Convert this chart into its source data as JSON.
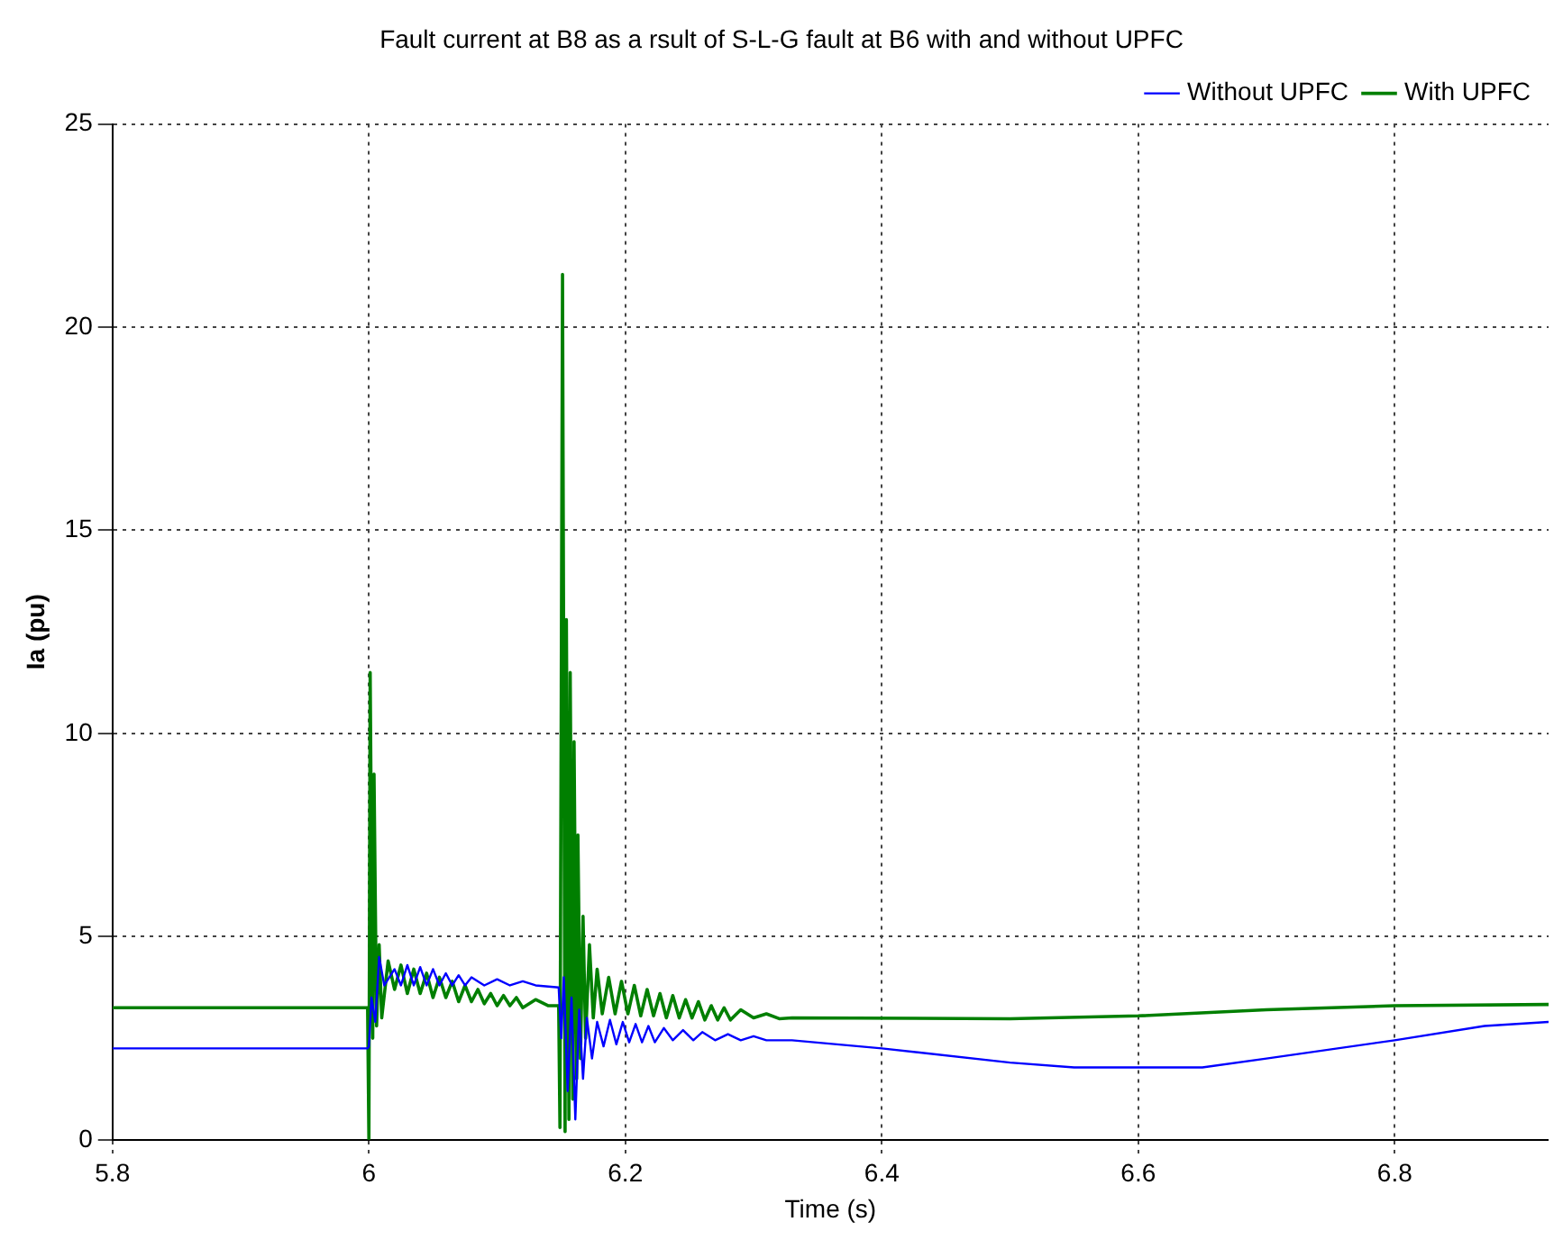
{
  "chart_data": {
    "type": "line",
    "title": "Fault current at B8 as a rsult of S-L-G fault at B6 with and without UPFC",
    "xlabel": "Time (s)",
    "ylabel": "Ia (pu)",
    "xlim": [
      5.8,
      6.92
    ],
    "xticks": [
      5.8,
      6,
      6.2,
      6.4,
      6.6,
      6.8
    ],
    "ylim": [
      0,
      25
    ],
    "yticks": [
      0,
      5,
      10,
      15,
      20,
      25
    ],
    "grid": true,
    "legend": "top right",
    "marker": "none",
    "line_style": "solid",
    "series": [
      {
        "name": "Without UPFC",
        "color": "#0000ff",
        "x": [
          5.8,
          5.999,
          6.0,
          6.002,
          6.005,
          6.008,
          6.012,
          6.02,
          6.025,
          6.03,
          6.035,
          6.04,
          6.045,
          6.05,
          6.055,
          6.06,
          6.065,
          6.07,
          6.075,
          6.08,
          6.09,
          6.1,
          6.11,
          6.12,
          6.13,
          6.148,
          6.15,
          6.152,
          6.155,
          6.158,
          6.161,
          6.164,
          6.167,
          6.17,
          6.174,
          6.178,
          6.183,
          6.188,
          6.193,
          6.198,
          6.203,
          6.208,
          6.213,
          6.218,
          6.223,
          6.23,
          6.237,
          6.245,
          6.253,
          6.26,
          6.27,
          6.28,
          6.29,
          6.3,
          6.31,
          6.33,
          6.4,
          6.5,
          6.55,
          6.65,
          6.7,
          6.8,
          6.87,
          6.92
        ],
        "values": [
          2.25,
          2.25,
          2.3,
          3.5,
          2.9,
          4.5,
          3.8,
          4.2,
          3.8,
          4.3,
          3.8,
          4.25,
          3.8,
          4.2,
          3.8,
          4.1,
          3.8,
          4.05,
          3.8,
          4.0,
          3.8,
          3.95,
          3.8,
          3.9,
          3.8,
          3.75,
          2.5,
          4.0,
          1.2,
          3.5,
          0.5,
          3.2,
          1.5,
          3.0,
          2.0,
          2.9,
          2.3,
          2.95,
          2.35,
          2.9,
          2.4,
          2.85,
          2.4,
          2.8,
          2.4,
          2.75,
          2.45,
          2.7,
          2.45,
          2.65,
          2.45,
          2.6,
          2.45,
          2.55,
          2.45,
          2.45,
          2.25,
          1.9,
          1.78,
          1.78,
          2.0,
          2.45,
          2.8,
          2.9
        ]
      },
      {
        "name": "With UPFC",
        "color": "#007f00",
        "x": [
          5.8,
          5.999,
          6.0,
          6.001,
          6.003,
          6.004,
          6.006,
          6.008,
          6.01,
          6.015,
          6.02,
          6.025,
          6.03,
          6.035,
          6.04,
          6.045,
          6.05,
          6.055,
          6.06,
          6.065,
          6.07,
          6.075,
          6.08,
          6.085,
          6.09,
          6.095,
          6.1,
          6.105,
          6.11,
          6.115,
          6.12,
          6.13,
          6.14,
          6.148,
          6.149,
          6.151,
          6.153,
          6.154,
          6.156,
          6.157,
          6.159,
          6.16,
          6.162,
          6.163,
          6.165,
          6.167,
          6.169,
          6.172,
          6.175,
          6.178,
          6.182,
          6.187,
          6.192,
          6.197,
          6.202,
          6.207,
          6.212,
          6.217,
          6.222,
          6.227,
          6.232,
          6.237,
          6.242,
          6.247,
          6.252,
          6.257,
          6.262,
          6.267,
          6.272,
          6.277,
          6.282,
          6.29,
          6.3,
          6.31,
          6.32,
          6.33,
          6.5,
          6.6,
          6.7,
          6.8,
          6.92
        ],
        "values": [
          3.25,
          3.25,
          0.0,
          11.5,
          2.5,
          9.0,
          2.8,
          4.8,
          3.0,
          4.4,
          3.7,
          4.3,
          3.6,
          4.2,
          3.6,
          4.1,
          3.5,
          4.0,
          3.5,
          3.9,
          3.4,
          3.8,
          3.4,
          3.7,
          3.35,
          3.6,
          3.3,
          3.55,
          3.3,
          3.5,
          3.25,
          3.45,
          3.3,
          3.3,
          0.3,
          21.3,
          0.2,
          12.8,
          0.5,
          11.5,
          1.0,
          9.8,
          1.5,
          7.5,
          2.0,
          5.5,
          2.5,
          4.8,
          3.0,
          4.2,
          3.1,
          4.0,
          3.1,
          3.9,
          3.1,
          3.8,
          3.05,
          3.7,
          3.05,
          3.6,
          3.0,
          3.55,
          3.0,
          3.45,
          3.0,
          3.4,
          2.95,
          3.3,
          2.95,
          3.25,
          2.95,
          3.2,
          3.0,
          3.1,
          2.98,
          3.0,
          2.98,
          3.05,
          3.2,
          3.3,
          3.33
        ]
      }
    ]
  }
}
